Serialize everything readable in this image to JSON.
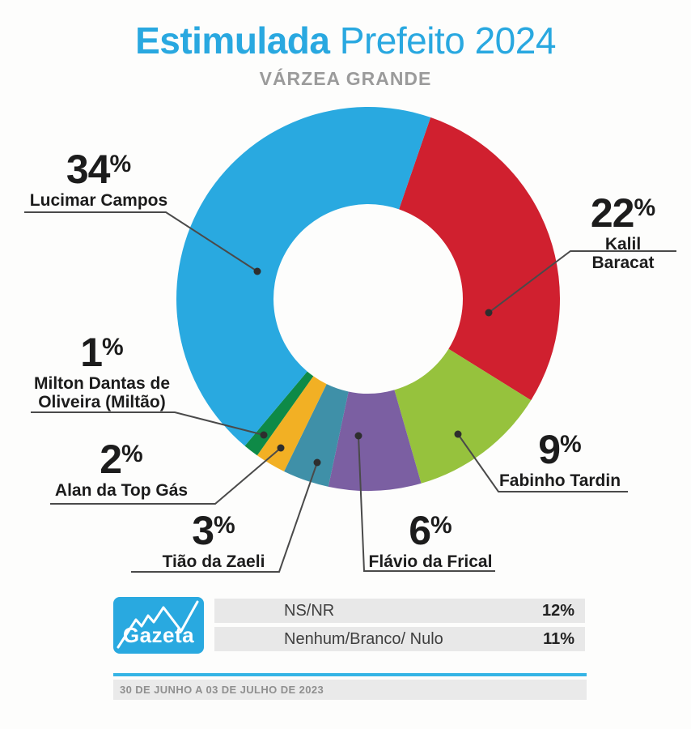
{
  "header": {
    "title_bold": "Estimulada",
    "title_regular": "Prefeito 2024",
    "subtitle": "VÁRZEA GRANDE",
    "accent_color": "#29a8e0"
  },
  "chart_data": {
    "type": "pie",
    "variant": "donut",
    "title": "Estimulada Prefeito 2024",
    "subtitle": "VÁRZEA GRANDE",
    "start_angle_deg": 19,
    "note": "candidate shares (sum 77%) fill the full donut; NS/NR and Nenhum shown in table",
    "segments": [
      {
        "label": "Kalil Baracat",
        "value": 22,
        "color": "#d0202f"
      },
      {
        "label": "Fabinho Tardin",
        "value": 9,
        "color": "#96c23d"
      },
      {
        "label": "Flávio da Frical",
        "value": 6,
        "color": "#7b5fa2"
      },
      {
        "label": "Tião da Zaeli",
        "value": 3,
        "color": "#3f90a8"
      },
      {
        "label": "Alan da Top Gás",
        "value": 2,
        "color": "#f2b024"
      },
      {
        "label": "Milton Dantas de Oliveira (Miltão)",
        "value": 1,
        "color": "#0e8a47"
      },
      {
        "label": "Lucimar Campos",
        "value": 34,
        "color": "#29a9e0"
      }
    ],
    "other_rows": [
      {
        "label": "NS/NR",
        "value": 12
      },
      {
        "label": "Nenhum/Branco/ Nulo",
        "value": 11
      }
    ]
  },
  "callouts": [
    {
      "id": "lucimar",
      "value": "34",
      "unit": "%",
      "name": "Lucimar Campos"
    },
    {
      "id": "kalil",
      "value": "22",
      "unit": "%",
      "name": "Kalil Baracat"
    },
    {
      "id": "milton",
      "value": "1",
      "unit": "%",
      "name": "Milton Dantas de\nOliveira (Miltão)"
    },
    {
      "id": "alan",
      "value": "2",
      "unit": "%",
      "name": "Alan da Top Gás"
    },
    {
      "id": "tiao",
      "value": "3",
      "unit": "%",
      "name": "Tião da Zaeli"
    },
    {
      "id": "flavio",
      "value": "6",
      "unit": "%",
      "name": "Flávio da Frical"
    },
    {
      "id": "fabinho",
      "value": "9",
      "unit": "%",
      "name": "Fabinho Tardin"
    }
  ],
  "footer": {
    "logo_text": "Gazeta",
    "rows": [
      {
        "label": "NS/NR",
        "value": "12%"
      },
      {
        "label": "Nenhum/Branco/ Nulo",
        "value": "11%"
      }
    ],
    "date_range": "30 DE JUNHO A 03 DE JULHO DE 2023"
  }
}
